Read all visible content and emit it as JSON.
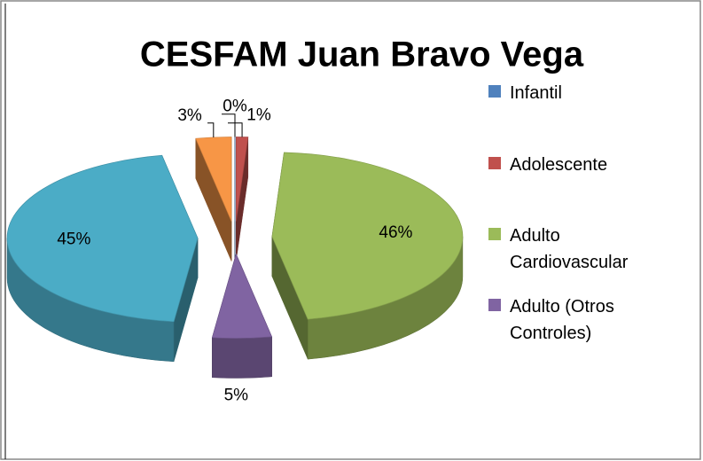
{
  "chart_data": {
    "type": "pie3d",
    "title": "CESFAM Juan Bravo Vega",
    "categories": [
      "Infantil",
      "Adolescente",
      "Adulto Cardiovascular",
      "Adulto (Otros Controles)",
      null,
      null
    ],
    "values": [
      0,
      1,
      46,
      5,
      45,
      3
    ],
    "value_labels": [
      "0%",
      "1%",
      "46%",
      "5%",
      "45%",
      "3%"
    ],
    "colors": [
      "#4f81bd",
      "#c0504d",
      "#9bbb59",
      "#8064a2",
      "#4bacc6",
      "#f79646"
    ],
    "legend": "right"
  }
}
